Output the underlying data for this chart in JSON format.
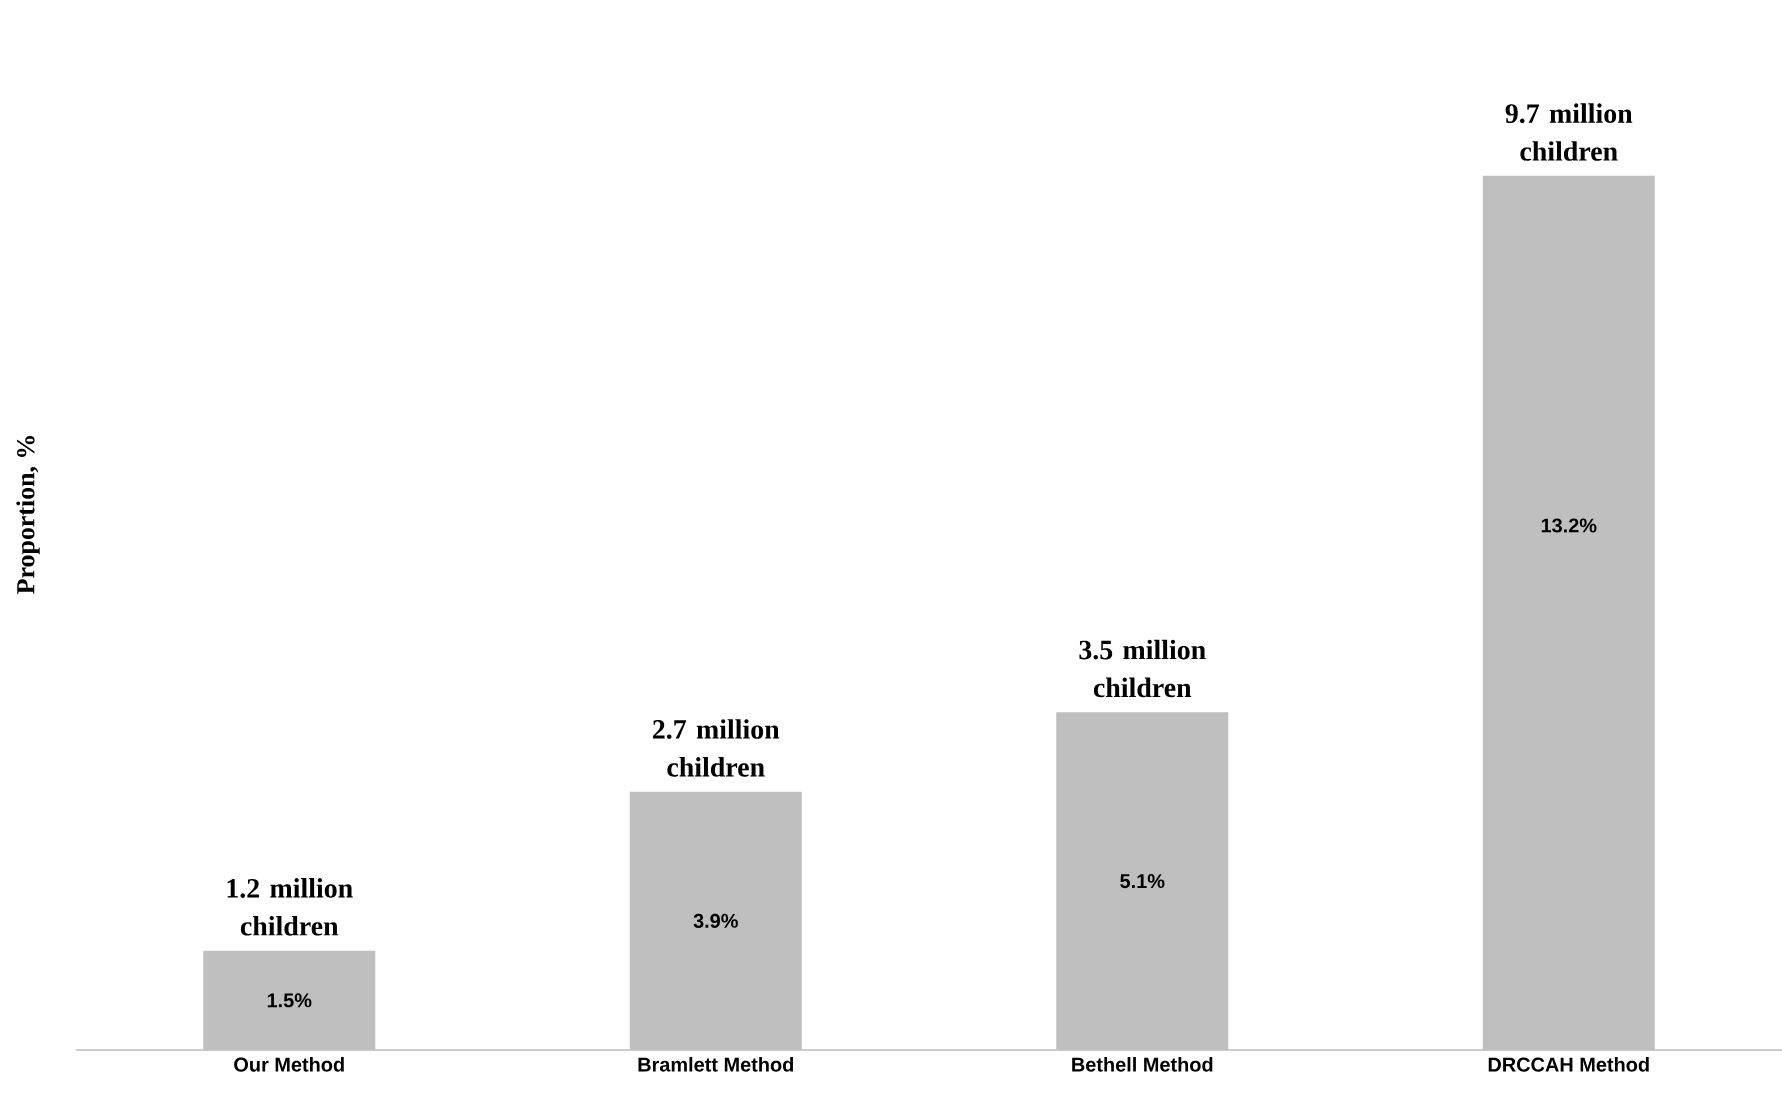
{
  "chart_data": {
    "type": "bar",
    "ylabel": "Proportion, %",
    "categories": [
      "Our Method",
      "Bramlett Method",
      "Bethell Method",
      "DRCCAH Method"
    ],
    "values": [
      1.5,
      3.9,
      5.1,
      13.2
    ],
    "value_labels": [
      "1.5%",
      "3.9%",
      "5.1%",
      "13.2%"
    ],
    "color": "#bfbfbf",
    "annotations": [
      "1.2 million children",
      "2.7 million children",
      "3.5 million children",
      "9.7 million children"
    ]
  }
}
